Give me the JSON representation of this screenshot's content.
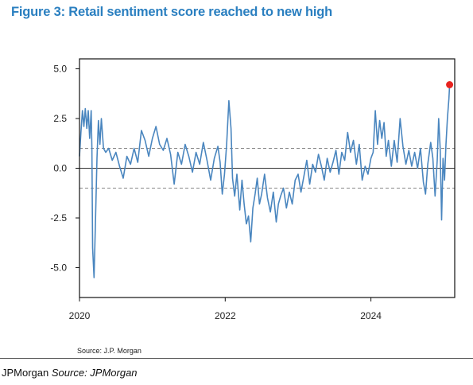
{
  "chart_data": {
    "type": "line",
    "title": "Figure 3: Retail sentiment score reached to new high",
    "xlabel": "",
    "ylabel": "",
    "xlim": [
      2020.0,
      2025.15
    ],
    "ylim": [
      -6.5,
      5.5
    ],
    "x_ticks": [
      2020,
      2022,
      2024
    ],
    "x_tick_labels": [
      "2020",
      "2022",
      "2024"
    ],
    "y_ticks": [
      5.0,
      2.5,
      0.0,
      -2.5,
      -5.0
    ],
    "y_tick_labels": [
      "5.0",
      "2.5",
      "0.0",
      "-2.5",
      "-5.0"
    ],
    "reference_lines": [
      {
        "y": 1.0,
        "style": "dashed"
      },
      {
        "y": 0.0,
        "style": "solid"
      },
      {
        "y": -1.0,
        "style": "dashed"
      }
    ],
    "grid": false,
    "series": [
      {
        "color": "#4a86bf",
        "points": [
          [
            2020.0,
            0.6
          ],
          [
            2020.02,
            1.8
          ],
          [
            2020.04,
            2.9
          ],
          [
            2020.06,
            2.1
          ],
          [
            2020.08,
            3.0
          ],
          [
            2020.1,
            2.0
          ],
          [
            2020.12,
            2.9
          ],
          [
            2020.14,
            1.5
          ],
          [
            2020.16,
            2.9
          ],
          [
            2020.17,
            1.0
          ],
          [
            2020.18,
            -4.0
          ],
          [
            2020.2,
            -5.5
          ],
          [
            2020.22,
            -2.5
          ],
          [
            2020.24,
            0.5
          ],
          [
            2020.26,
            2.4
          ],
          [
            2020.28,
            1.2
          ],
          [
            2020.3,
            2.5
          ],
          [
            2020.33,
            1.0
          ],
          [
            2020.36,
            0.8
          ],
          [
            2020.4,
            1.0
          ],
          [
            2020.45,
            0.4
          ],
          [
            2020.5,
            0.8
          ],
          [
            2020.55,
            0.1
          ],
          [
            2020.6,
            -0.5
          ],
          [
            2020.65,
            0.6
          ],
          [
            2020.7,
            0.2
          ],
          [
            2020.75,
            1.0
          ],
          [
            2020.8,
            0.3
          ],
          [
            2020.85,
            1.9
          ],
          [
            2020.9,
            1.4
          ],
          [
            2020.95,
            0.6
          ],
          [
            2021.0,
            1.5
          ],
          [
            2021.05,
            2.1
          ],
          [
            2021.1,
            1.2
          ],
          [
            2021.15,
            0.9
          ],
          [
            2021.2,
            1.5
          ],
          [
            2021.25,
            0.7
          ],
          [
            2021.3,
            -0.8
          ],
          [
            2021.35,
            0.8
          ],
          [
            2021.4,
            0.2
          ],
          [
            2021.45,
            1.2
          ],
          [
            2021.5,
            0.6
          ],
          [
            2021.55,
            -0.2
          ],
          [
            2021.6,
            0.8
          ],
          [
            2021.65,
            0.2
          ],
          [
            2021.7,
            1.3
          ],
          [
            2021.75,
            0.4
          ],
          [
            2021.8,
            -0.6
          ],
          [
            2021.85,
            0.5
          ],
          [
            2021.9,
            1.1
          ],
          [
            2021.93,
            0.3
          ],
          [
            2021.96,
            -1.3
          ],
          [
            2021.99,
            -0.3
          ],
          [
            2022.02,
            1.2
          ],
          [
            2022.05,
            3.4
          ],
          [
            2022.08,
            2.0
          ],
          [
            2022.1,
            -0.5
          ],
          [
            2022.13,
            -1.4
          ],
          [
            2022.16,
            -0.3
          ],
          [
            2022.2,
            -2.1
          ],
          [
            2022.23,
            -0.6
          ],
          [
            2022.26,
            -1.8
          ],
          [
            2022.29,
            -2.8
          ],
          [
            2022.32,
            -2.4
          ],
          [
            2022.35,
            -3.7
          ],
          [
            2022.38,
            -2.0
          ],
          [
            2022.41,
            -1.3
          ],
          [
            2022.44,
            -0.5
          ],
          [
            2022.47,
            -1.8
          ],
          [
            2022.5,
            -1.3
          ],
          [
            2022.54,
            -0.3
          ],
          [
            2022.58,
            -1.5
          ],
          [
            2022.62,
            -2.2
          ],
          [
            2022.66,
            -1.2
          ],
          [
            2022.7,
            -2.7
          ],
          [
            2022.73,
            -1.8
          ],
          [
            2022.76,
            -1.4
          ],
          [
            2022.8,
            -1.0
          ],
          [
            2022.84,
            -2.0
          ],
          [
            2022.88,
            -1.2
          ],
          [
            2022.92,
            -1.8
          ],
          [
            2022.96,
            -0.6
          ],
          [
            2023.0,
            -0.3
          ],
          [
            2023.04,
            -1.2
          ],
          [
            2023.08,
            -0.4
          ],
          [
            2023.12,
            0.4
          ],
          [
            2023.16,
            -0.8
          ],
          [
            2023.2,
            0.2
          ],
          [
            2023.24,
            -0.2
          ],
          [
            2023.28,
            0.7
          ],
          [
            2023.32,
            0.1
          ],
          [
            2023.36,
            -0.6
          ],
          [
            2023.4,
            0.5
          ],
          [
            2023.44,
            -0.2
          ],
          [
            2023.48,
            0.3
          ],
          [
            2023.52,
            0.9
          ],
          [
            2023.56,
            -0.3
          ],
          [
            2023.6,
            0.8
          ],
          [
            2023.64,
            0.4
          ],
          [
            2023.68,
            1.8
          ],
          [
            2023.72,
            0.8
          ],
          [
            2023.76,
            1.4
          ],
          [
            2023.8,
            0.2
          ],
          [
            2023.84,
            1.2
          ],
          [
            2023.88,
            -0.6
          ],
          [
            2023.92,
            0.1
          ],
          [
            2023.96,
            -0.3
          ],
          [
            2024.0,
            0.5
          ],
          [
            2024.03,
            0.8
          ],
          [
            2024.06,
            2.9
          ],
          [
            2024.09,
            1.2
          ],
          [
            2024.12,
            2.4
          ],
          [
            2024.15,
            1.5
          ],
          [
            2024.18,
            2.3
          ],
          [
            2024.21,
            0.6
          ],
          [
            2024.24,
            1.4
          ],
          [
            2024.28,
            0.1
          ],
          [
            2024.32,
            1.4
          ],
          [
            2024.36,
            0.3
          ],
          [
            2024.4,
            2.5
          ],
          [
            2024.44,
            1.1
          ],
          [
            2024.48,
            0.2
          ],
          [
            2024.52,
            0.9
          ],
          [
            2024.56,
            0.1
          ],
          [
            2024.6,
            0.8
          ],
          [
            2024.64,
            0.0
          ],
          [
            2024.68,
            1.0
          ],
          [
            2024.72,
            -0.7
          ],
          [
            2024.75,
            -1.3
          ],
          [
            2024.78,
            0.2
          ],
          [
            2024.82,
            1.3
          ],
          [
            2024.85,
            0.5
          ],
          [
            2024.88,
            -1.4
          ],
          [
            2024.91,
            0.4
          ],
          [
            2024.93,
            2.5
          ],
          [
            2024.95,
            1.0
          ],
          [
            2024.97,
            -2.6
          ],
          [
            2024.99,
            0.5
          ],
          [
            2025.01,
            -0.6
          ],
          [
            2025.03,
            1.2
          ],
          [
            2025.05,
            2.5
          ],
          [
            2025.07,
            3.5
          ],
          [
            2025.08,
            4.2
          ]
        ]
      }
    ],
    "highlight_point": {
      "x": 2025.08,
      "y": 4.2,
      "color": "#e8231f"
    }
  },
  "labels": {
    "title": "Figure 3: Retail sentiment score reached to new high",
    "source_small": "Source: J.P. Morgan",
    "footer_prefix": "JPMorgan ",
    "footer_source": "Source: JPMorgan"
  },
  "colors": {
    "title": "#2a7fc0",
    "line": "#4a86bf",
    "marker": "#e8231f"
  }
}
